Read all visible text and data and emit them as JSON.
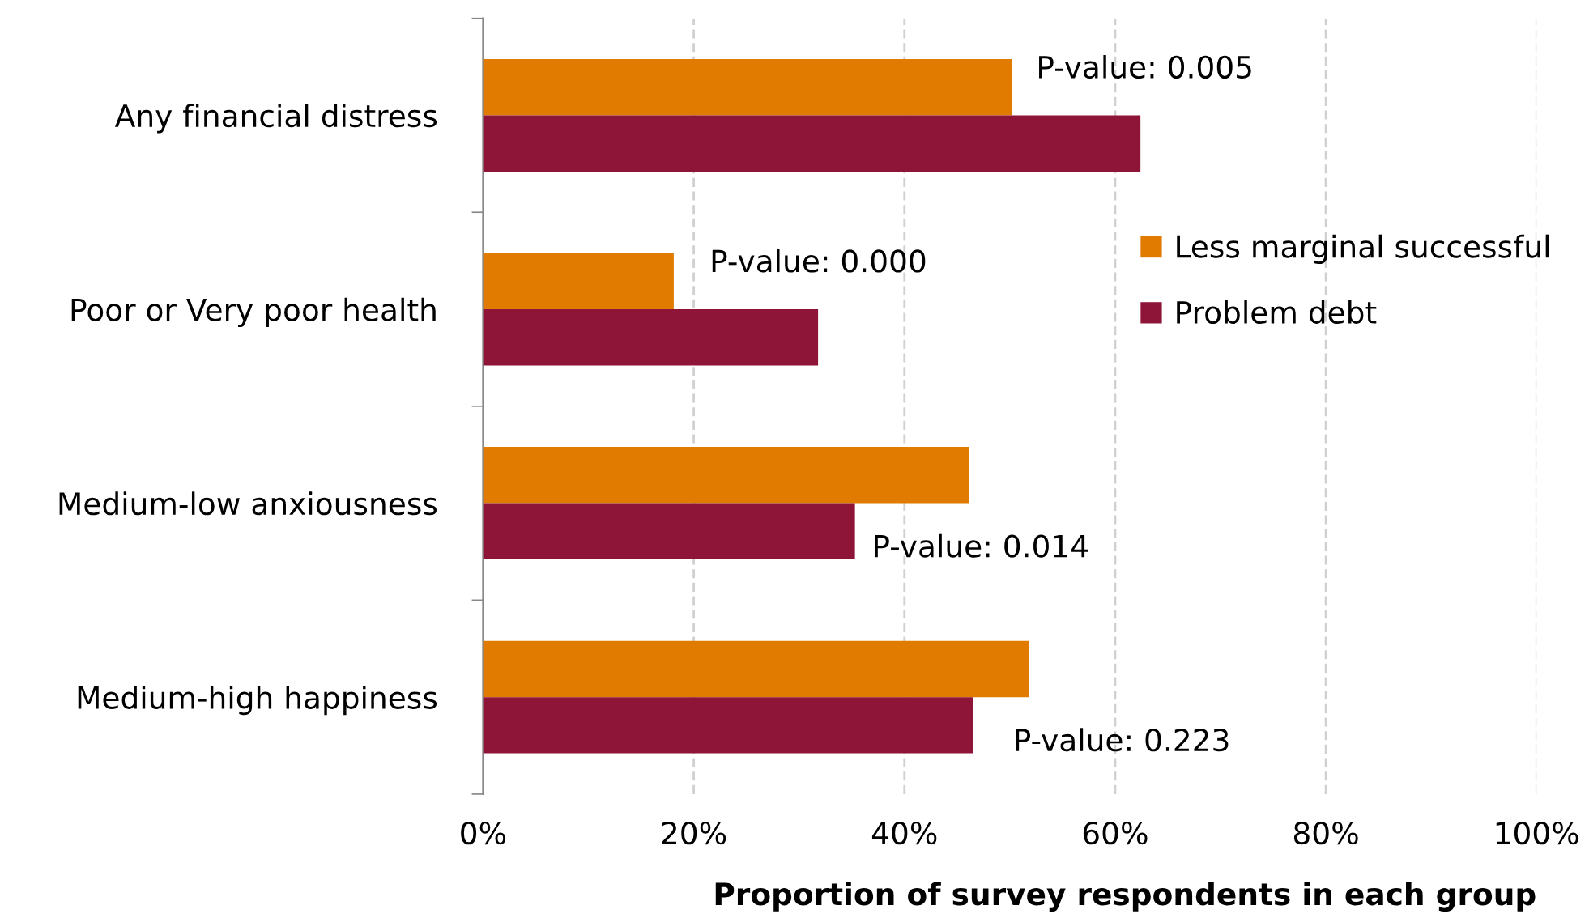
{
  "chart_data": {
    "type": "bar",
    "orientation": "horizontal",
    "xlabel": "Proportion of survey respondents in each group",
    "categories": [
      "Any financial distress",
      "Poor or Very poor health",
      "Medium-low anxiousness",
      "Medium-high happiness"
    ],
    "series": [
      {
        "name": "Less marginal successful",
        "color": "#e07b00",
        "values": [
          50.2,
          18.1,
          46.1,
          51.8
        ]
      },
      {
        "name": "Problem debt",
        "color": "#8e1537",
        "values": [
          62.4,
          31.8,
          35.3,
          46.5
        ]
      }
    ],
    "xlim": [
      0,
      100
    ],
    "xticks": [
      {
        "value": 0,
        "label": "0%"
      },
      {
        "value": 20,
        "label": "20%"
      },
      {
        "value": 40,
        "label": "40%"
      },
      {
        "value": 60,
        "label": "60%"
      },
      {
        "value": 80,
        "label": "80%"
      },
      {
        "value": 100,
        "label": "100%"
      }
    ],
    "grid": "x",
    "legend": "right",
    "annotations": [
      {
        "text": "P-value: 0.005",
        "x": 52.5,
        "y": "Any financial distress"
      },
      {
        "text": "P-value: 0.000",
        "x": 21.5,
        "y": "Poor or Very poor health"
      },
      {
        "text": "P-value: 0.014",
        "x": 36.9,
        "y": "Medium-low anxiousness"
      },
      {
        "text": "P-value: 0.223",
        "x": 50.3,
        "y": "Medium-high happiness"
      }
    ]
  }
}
